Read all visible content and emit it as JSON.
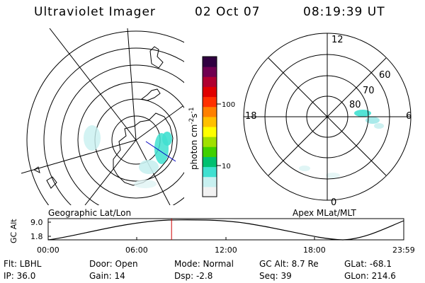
{
  "header": {
    "instrument": "Ultraviolet Imager",
    "date": "02 Oct 07",
    "time": "08:19:39 UT"
  },
  "left_map": {
    "label": "Geographic Lat/Lon"
  },
  "right_map": {
    "label": "Apex MLat/MLT",
    "mlt_labels": [
      "12",
      "18",
      "6",
      "0"
    ],
    "lat_labels": [
      "60",
      "70",
      "80"
    ]
  },
  "colorbar": {
    "unit_label": "photon cm",
    "unit_exp1": "-2",
    "unit_mid": "s",
    "unit_exp2": "-1",
    "ticks": [
      "100",
      "10"
    ],
    "colors": [
      "#f2f2f2",
      "#c8f0f0",
      "#40e0d0",
      "#00c070",
      "#40d000",
      "#a0e000",
      "#ffff00",
      "#ffc000",
      "#ff8000",
      "#ff3000",
      "#e00000",
      "#b00030",
      "#700050",
      "#300040"
    ]
  },
  "altitude_plot": {
    "ylabel": "GC Alt",
    "ytick_top": "9.0",
    "ytick_bottom": "1.8",
    "xticks": [
      "00:00",
      "06:00",
      "12:00",
      "18:00",
      "23:59"
    ],
    "current_time_fraction": 0.347
  },
  "info": {
    "filter_label": "Flt: LBHL",
    "ip_label": "IP: 36.0",
    "door_label": "Door: Open",
    "gain_label": "Gain: 14",
    "mode_label": "Mode: Normal",
    "dsp_label": "Dsp:    -2.8",
    "gcalt_label": "GC Alt: 8.7 Re",
    "seq_label": "Seq: 39",
    "glat_label": "GLat: -68.1",
    "glon_label": "GLon: 214.6"
  }
}
